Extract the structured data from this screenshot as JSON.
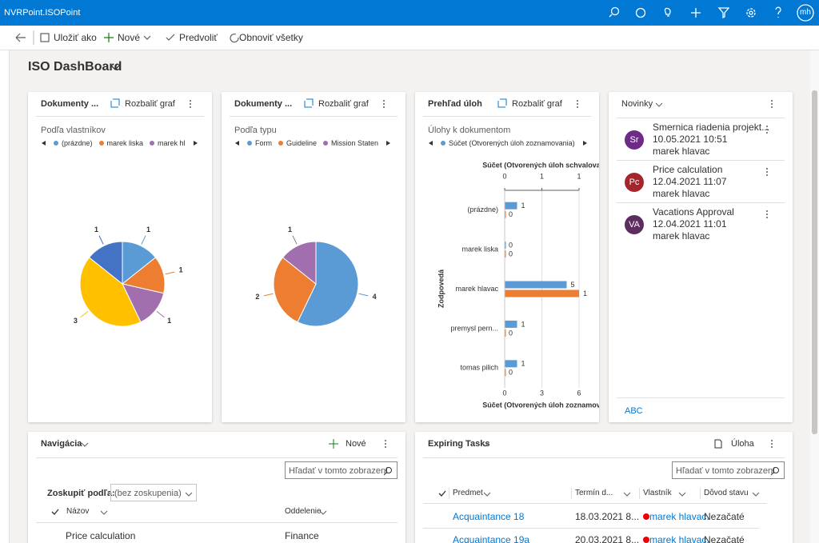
{
  "header": {
    "app_name": "NVRPoint.ISOPoint",
    "user_initials": "mh"
  },
  "command_bar": {
    "items": [
      "Uložiť ako",
      "Nové",
      "Predvoliť",
      "Obnoviť všetky"
    ]
  },
  "dashboard": {
    "title": "ISO DashBoard"
  },
  "chart_data": [
    {
      "type": "pie",
      "title": "Dokumenty ...",
      "expand_label": "Rozbaliť graf",
      "subtitle": "Podľa vlastníkov",
      "categories": [
        "(prázdne)",
        "marek liska",
        "marek hl",
        null,
        null
      ],
      "values": [
        1,
        1,
        1,
        3,
        1
      ],
      "colors": [
        "#5b9bd5",
        "#ed7d31",
        "#a26fae",
        "#ffc000",
        "#4472c4"
      ]
    },
    {
      "type": "pie",
      "title": "Dokumenty ...",
      "expand_label": "Rozbaliť graf",
      "subtitle": "Podľa typu",
      "categories": [
        "Form",
        "Guideline",
        "Mission Staten"
      ],
      "values": [
        4,
        2,
        1
      ],
      "colors": [
        "#5b9bd5",
        "#ed7d31",
        "#a26fae"
      ]
    },
    {
      "type": "hbar",
      "title": "Prehľad úloh",
      "expand_label": "Rozbaliť graf",
      "subtitle": "Úlohy k dokumentom",
      "categories": [
        "(prázdne)",
        "marek liska",
        "marek hlavac",
        "premysl pern...",
        "tomas pilich"
      ],
      "series": [
        {
          "name": "Súčet (Otvorených úloh zoznamovania)",
          "color": "#5b9bd5",
          "values": [
            1,
            0,
            5,
            1,
            1
          ]
        },
        {
          "color": "#ed7d31",
          "axis": "x2",
          "values": [
            0,
            0,
            1,
            0,
            0
          ]
        }
      ],
      "xlabel": "Súčet (Otvorených úloh zoznamov",
      "x2label": "Súčet (Otvorených úloh schvalova",
      "ylabel": "Zodpovedá",
      "xlim": [
        0,
        6
      ],
      "xticks": [
        0,
        3,
        6
      ],
      "x2lim": [
        0,
        1
      ],
      "x2ticks": [
        0,
        {
          "value": 0.5,
          "label": "1"
        },
        1
      ],
      "grid": true
    }
  ],
  "news": {
    "title": "Novinky",
    "items": [
      {
        "initials": "Sr",
        "color": "#6e2a87",
        "title": "Smernica riadenia projekt...",
        "date": "10.05.2021 10:51",
        "author": "marek hlavac"
      },
      {
        "initials": "Pc",
        "color": "#a4262c",
        "title": "Price calculation",
        "date": "12.04.2021 11:07",
        "author": "marek hlavac"
      },
      {
        "initials": "VA",
        "color": "#5c2d5e",
        "title": "Vacations Approval",
        "date": "12.04.2021 11:01",
        "author": "marek hlavac"
      }
    ],
    "footer": "ABC"
  },
  "navigation": {
    "title": "Navigácia",
    "new_label": "Nové",
    "search": "Hľadať v tomto zobrazení",
    "group_label": "Zoskupiť podľa:",
    "group_value": "(bez zoskupenia)",
    "columns": [
      "Názov",
      "Oddelenie"
    ],
    "rows": [
      [
        "Price calculation",
        "Finance"
      ]
    ]
  },
  "expiring_tasks": {
    "title": "Expiring Tasks",
    "action": "Úloha",
    "search": "Hľadať v tomto zobrazení",
    "columns": [
      "Predmet",
      "Termín d...",
      "Vlastník",
      "Dôvod stavu"
    ],
    "rows": [
      [
        "Acquaintance 18",
        "18.03.2021 8...",
        "marek hlavac.",
        "Nezačaté"
      ],
      [
        "Acquaintance 19a",
        "20.03.2021 8...",
        "marek hlavac.",
        "Nezačaté"
      ]
    ]
  }
}
